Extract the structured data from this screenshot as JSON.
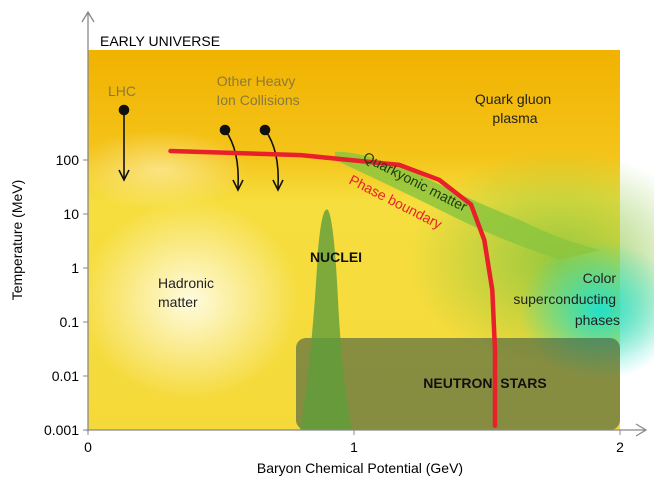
{
  "chart_data": {
    "type": "phase",
    "title": "EARLY UNIVERSE",
    "x_label": "Baryon Chemical Potential (GeV)",
    "y_label": "Temperature (MeV)",
    "xlim": [
      0,
      2
    ],
    "xticks": [
      0,
      1,
      2
    ],
    "ylim": [
      0.001,
      10000
    ],
    "yticks": [
      0.001,
      0.01,
      0.1,
      1,
      10,
      100
    ],
    "log_y": true,
    "series": [
      {
        "name": "Phase boundary",
        "color": "#e8202a",
        "x": [
          0.31,
          0.8,
          1.17,
          1.32,
          1.44,
          1.49,
          1.52,
          1.53,
          1.53
        ],
        "values": [
          147,
          123,
          81,
          43,
          15,
          3.3,
          0.39,
          0.03,
          0.0012
        ]
      }
    ],
    "annotations": {
      "lhc": "LHC",
      "other_heavy_ion": [
        "Other Heavy",
        "Ion Collisions"
      ],
      "qgp": [
        "Quark gluon",
        "plasma"
      ],
      "quarkyonic": "Quarkyonic matter",
      "nuclei": "NUCLEI",
      "hadronic": [
        "Hadronic",
        "matter"
      ],
      "color_sc": [
        "Color",
        "superconducting",
        "phases"
      ],
      "neutron_stars": "NEUTRON  STARS"
    }
  }
}
